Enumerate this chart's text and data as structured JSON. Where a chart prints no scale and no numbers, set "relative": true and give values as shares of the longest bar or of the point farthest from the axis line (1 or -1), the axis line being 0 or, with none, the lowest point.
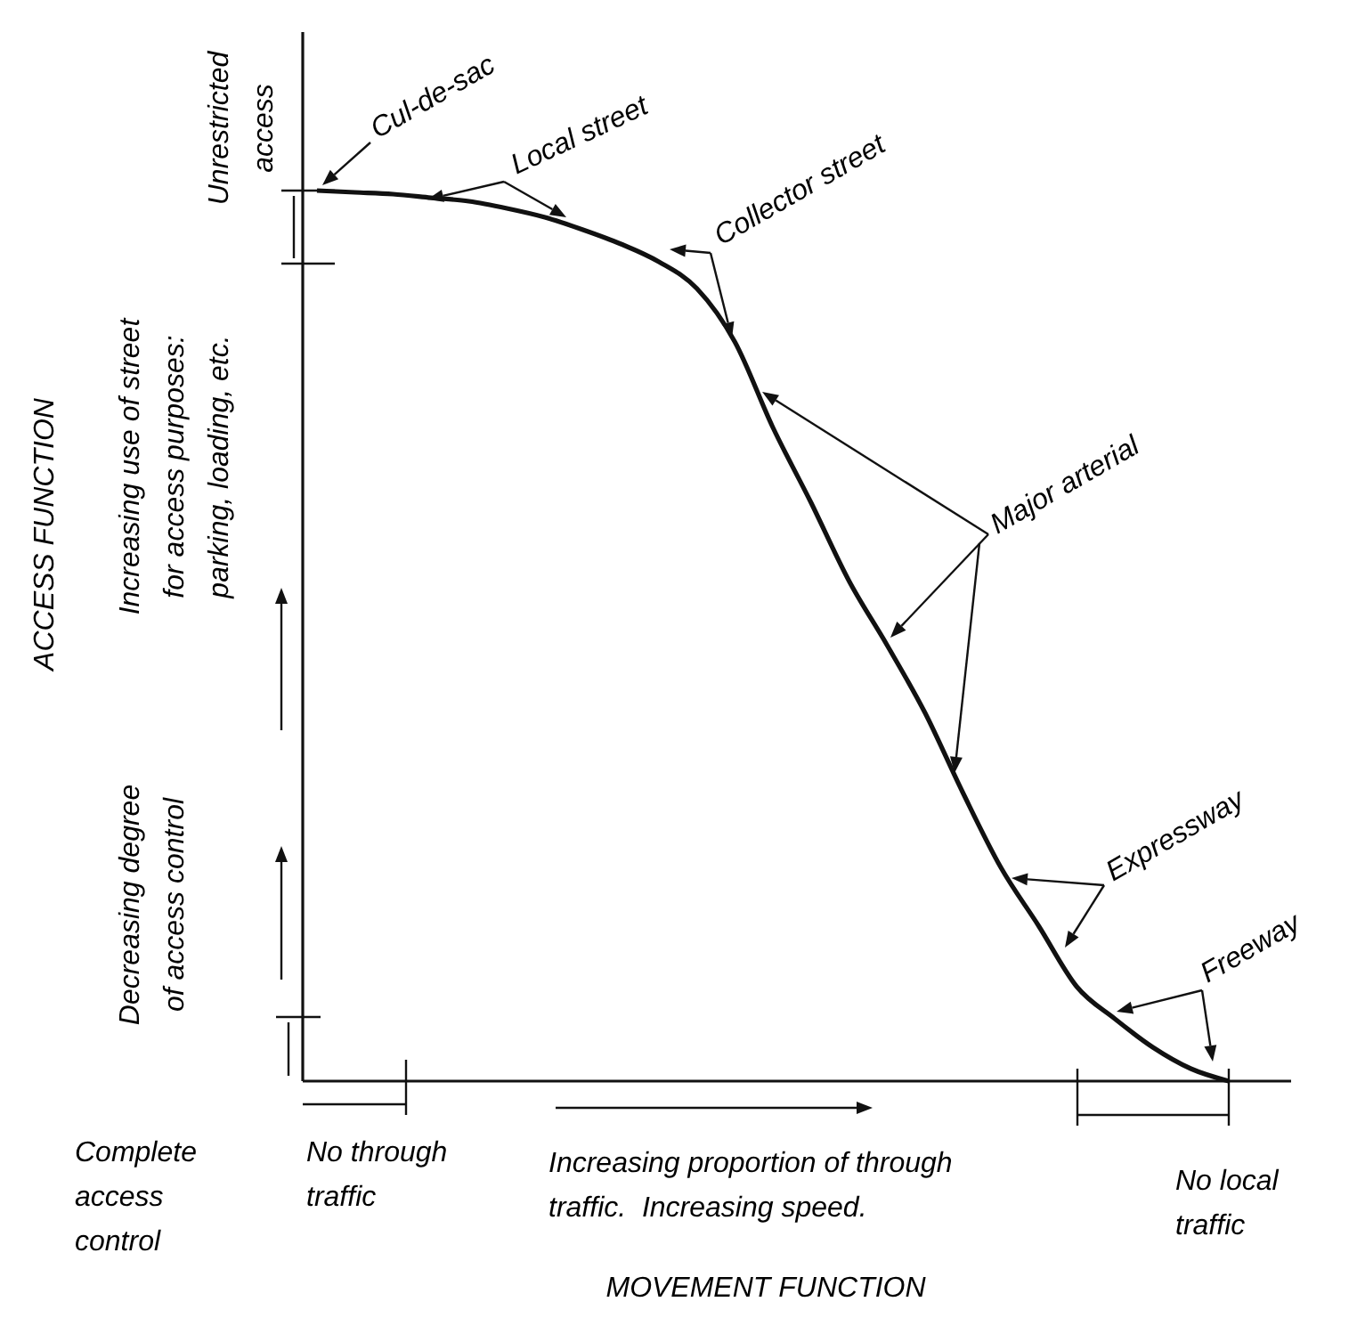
{
  "chart_data": {
    "type": "line",
    "relative": true,
    "color": "#111111",
    "categories": [
      null,
      null,
      null,
      null,
      null,
      null,
      null,
      null,
      null,
      null,
      null,
      null,
      null,
      null,
      null,
      null,
      null,
      null,
      null,
      null,
      null,
      null,
      null,
      null,
      null,
      null
    ],
    "values": [
      1.0,
      0.998,
      0.996,
      0.992,
      0.988,
      0.98,
      0.97,
      0.956,
      0.94,
      0.92,
      0.89,
      0.83,
      0.734,
      0.65,
      0.562,
      0.49,
      0.414,
      0.324,
      0.24,
      0.174,
      0.106,
      0.07,
      0.038,
      0.014,
      0,
      null
    ],
    "annotations": [
      "Cul-de-sac",
      "Local street",
      "Collector street",
      "Major arterial",
      "Expressway",
      "Freeway",
      "Unrestricted access",
      "Increasing use of street for access purposes: parking, loading, etc.",
      "Decreasing degree of access control",
      "Complete access control",
      "No through traffic",
      "Increasing proportion of through traffic.  Increasing speed.",
      "No local traffic",
      "MOVEMENT FUNCTION",
      "ACCESS FUNCTION"
    ]
  }
}
